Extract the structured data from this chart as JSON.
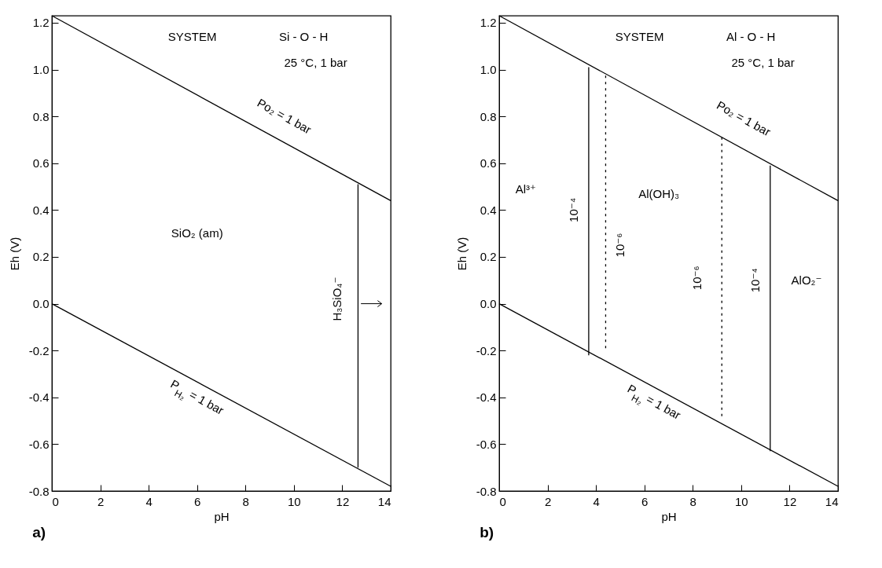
{
  "chart_data": [
    {
      "type": "line",
      "title": "a)",
      "xlabel": "pH",
      "ylabel": "Eh (V)",
      "xlim": [
        0,
        14
      ],
      "ylim": [
        -0.8,
        1.23
      ],
      "xticks": [
        0,
        2,
        4,
        6,
        8,
        10,
        12,
        14
      ],
      "yticks": [
        {
          "value": -0.8,
          "label": "-0.8"
        },
        {
          "value": -0.6,
          "label": "-0.6"
        },
        {
          "value": -0.4,
          "label": "-0.4"
        },
        {
          "value": -0.2,
          "label": "-0.2"
        },
        {
          "value": 0,
          "label": "0.0"
        },
        {
          "value": 0.2,
          "label": "0.2"
        },
        {
          "value": 0.4,
          "label": "0.4"
        },
        {
          "value": 0.6,
          "label": "0.6"
        },
        {
          "value": 0.8,
          "label": "0.8"
        },
        {
          "value": 1,
          "label": "1.0"
        },
        {
          "value": 1.2,
          "label": "1.2"
        }
      ],
      "grid": false,
      "marker": "none",
      "series": [
        {
          "color": "#000000",
          "line_style": "solid",
          "x": [
            0,
            14
          ],
          "values": [
            1.23,
            0.44
          ]
        },
        {
          "color": "#000000",
          "line_style": "solid",
          "x": [
            0,
            14
          ],
          "values": [
            0,
            -0.78
          ]
        },
        {
          "color": "#000000",
          "line_style": "solid",
          "x": [
            12.65,
            12.65
          ],
          "values": [
            -0.7,
            0.51
          ]
        }
      ],
      "annotations": [
        "SYSTEM",
        "Si - O - H",
        "25 °C, 1 bar",
        "Po₂ = 1 bar",
        "SiO₂ (am)",
        "H₃SiO₄⁻",
        "P$_{H₂}$ = 1 bar"
      ]
    },
    {
      "type": "line",
      "title": "b)",
      "xlabel": "pH",
      "ylabel": "Eh (V)",
      "xlim": [
        0,
        14
      ],
      "ylim": [
        -0.8,
        1.23
      ],
      "xticks": [
        0,
        2,
        4,
        6,
        8,
        10,
        12,
        14
      ],
      "yticks": [
        {
          "value": -0.8,
          "label": "-0.8"
        },
        {
          "value": -0.6,
          "label": "-0.6"
        },
        {
          "value": -0.4,
          "label": "-0.4"
        },
        {
          "value": -0.2,
          "label": "-0.2"
        },
        {
          "value": 0,
          "label": "0.0"
        },
        {
          "value": 0.2,
          "label": "0.2"
        },
        {
          "value": 0.4,
          "label": "0.4"
        },
        {
          "value": 0.6,
          "label": "0.6"
        },
        {
          "value": 0.8,
          "label": "0.8"
        },
        {
          "value": 1,
          "label": "1.0"
        },
        {
          "value": 1.2,
          "label": "1.2"
        }
      ],
      "grid": false,
      "marker": "none",
      "series": [
        {
          "color": "#000000",
          "line_style": "solid",
          "x": [
            0,
            14
          ],
          "values": [
            1.23,
            0.44
          ]
        },
        {
          "color": "#000000",
          "line_style": "solid",
          "x": [
            0,
            14
          ],
          "values": [
            0,
            -0.78
          ]
        },
        {
          "color": "#000000",
          "line_style": "solid",
          "x": [
            3.7,
            3.7
          ],
          "values": [
            -0.22,
            1.01
          ]
        },
        {
          "color": "#000000",
          "line_style": "dotted",
          "x": [
            4.4,
            4.4
          ],
          "values": [
            -0.19,
            0.98
          ]
        },
        {
          "color": "#000000",
          "line_style": "dotted",
          "x": [
            9.2,
            9.2
          ],
          "values": [
            -0.48,
            0.71
          ]
        },
        {
          "color": "#000000",
          "line_style": "solid",
          "x": [
            11.2,
            11.2
          ],
          "values": [
            -0.63,
            0.59
          ]
        }
      ],
      "annotations": [
        "SYSTEM",
        "Al - O - H",
        "25 °C, 1 bar",
        "Po₂ = 1 bar",
        "Al³⁺",
        "10⁻⁴",
        "10⁻⁶",
        "Al(OH)₃",
        "10⁻⁶",
        "10⁻⁴",
        "AlO₂⁻",
        "P$_{H₂}$ = 1 bar"
      ]
    }
  ]
}
